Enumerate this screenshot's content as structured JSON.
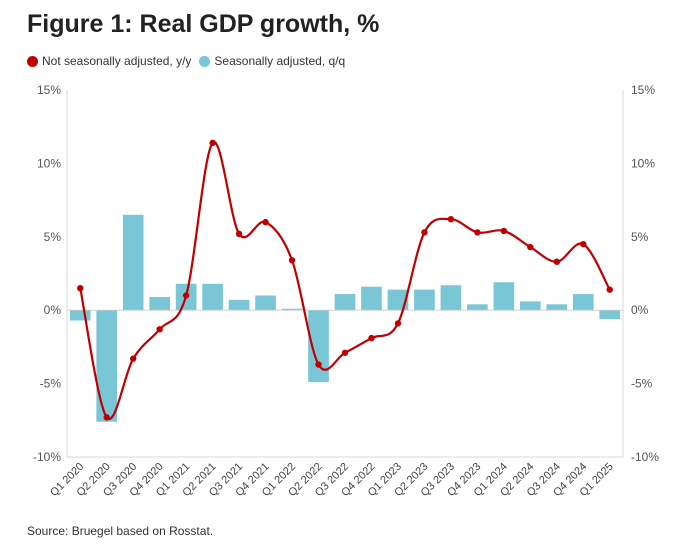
{
  "title": "Figure 1: Real GDP growth, %",
  "source": "Source: Bruegel based on Rosstat.",
  "colors": {
    "line": "#c00000",
    "bar": "#79c6d6",
    "axis": "#d9d9d9"
  },
  "chart_data": {
    "type": "bar",
    "categories": [
      "Q1 2020",
      "Q2 2020",
      "Q3 2020",
      "Q4 2020",
      "Q1 2021",
      "Q2 2021",
      "Q3 2021",
      "Q4 2021",
      "Q1 2022",
      "Q2 2022",
      "Q3 2022",
      "Q4 2022",
      "Q1 2023",
      "Q2 2023",
      "Q3 2023",
      "Q4 2023",
      "Q1 2024",
      "Q2 2024",
      "Q3 2024",
      "Q4 2024",
      "Q1 2025"
    ],
    "series": [
      {
        "name": "Seasonally adjusted, q/q",
        "type": "bar",
        "values": [
          -0.7,
          -7.6,
          6.5,
          0.9,
          1.8,
          1.8,
          0.7,
          1.0,
          0.1,
          -4.9,
          1.1,
          1.6,
          1.4,
          1.4,
          1.7,
          0.4,
          1.9,
          0.6,
          0.4,
          1.1,
          -0.6
        ]
      },
      {
        "name": "Not seasonally adjusted, y/y",
        "type": "line",
        "values": [
          1.5,
          -7.3,
          -3.3,
          -1.3,
          1.0,
          11.4,
          5.2,
          6.0,
          3.4,
          -3.7,
          -2.9,
          -1.9,
          -0.9,
          5.3,
          6.2,
          5.3,
          5.4,
          4.3,
          3.3,
          4.5,
          1.4
        ]
      }
    ],
    "legend": [
      "Not seasonally adjusted, y/y",
      "Seasonally adjusted, q/q"
    ],
    "legend_position": "top-left",
    "ylim": [
      -10,
      15
    ],
    "yticks": [
      -10,
      -5,
      0,
      5,
      10,
      15
    ],
    "ytick_labels": [
      "-10%",
      "-5%",
      "0%",
      "5%",
      "10%",
      "15%"
    ],
    "secondary_axis": true,
    "grid": false
  }
}
